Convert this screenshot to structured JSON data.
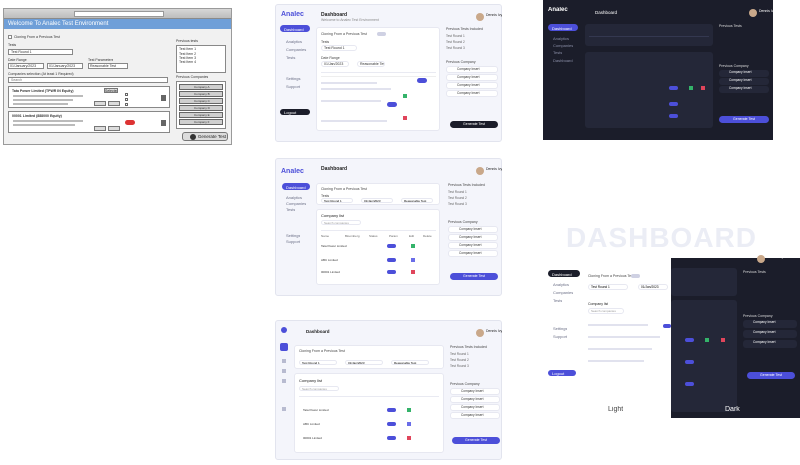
{
  "wireframe": {
    "banner": "Welcome To Analec Test Environment",
    "checkbox_label": "Cloning From a Previous Test",
    "tests_label": "Tests",
    "tests_value": "Test Round 1",
    "date_range_label": "Date Range",
    "date_from": "01/January/2023",
    "date_to": "01/January/2023",
    "test_parameters_label": "Test Parameters",
    "test_parameters_value": "Reasonable Test",
    "companies_label": "Companies selection (At least 1 Required)",
    "search_placeholder": "Search",
    "company1_name": "Tata Power Limited (TPWR IN Equity)",
    "company1_tag": "Selected",
    "company2_name": "00001 Limited (888000 Equity)",
    "previous_tests_label": "Previous tests",
    "previous_tests": [
      "Test Item 1",
      "Test Item 2",
      "Test Item 3",
      "Test Item 4"
    ],
    "previous_companies_label": "Previous Companies",
    "previous_companies": [
      "Company A",
      "Company B",
      "Company C",
      "Company D",
      "Company E",
      "Company F"
    ],
    "run_button": "Generate Test"
  },
  "mock_light": {
    "logo": "Analec",
    "title": "Dashboard",
    "subtitle": "Welcome to Analec Test Environment",
    "user": "Dennis Ivy",
    "user_role": "Admin",
    "nav": [
      "Dashboard",
      "Analytics",
      "Companies",
      "Tests",
      "Settings",
      "Support"
    ],
    "clone_label": "Cloning From a Previous Test",
    "tests_label": "Tests",
    "tests_value": "Test Round 1",
    "date_label": "Date Range",
    "date_value": "01/Jan/2023",
    "params_label": "Test Parameters",
    "params_value": "Reasonable Test",
    "companies_label": "Company list",
    "search_placeholder": "Search companies",
    "col_headers": [
      "Name",
      "Bloomberg",
      "Status",
      "Param",
      "Edit",
      "Delete"
    ],
    "rows": [
      "Tata Power Limited",
      "ABC Limited",
      "00001 Limited"
    ],
    "previous_tests_label": "Previous Tests Included",
    "previous_tests": [
      "Test Round 1",
      "Test Round 2",
      "Test Round 3"
    ],
    "previous_companies_label": "Previous Company",
    "previous_companies": [
      "Company Insert",
      "Company Insert",
      "Company Insert",
      "Company Insert"
    ],
    "run_button": "Generate Test",
    "logout": "Logout"
  },
  "mock_dark": {
    "logo": "Analec",
    "title": "Dashboard",
    "user": "Dennis Ivy",
    "nav": [
      "Dashboard",
      "Analytics",
      "Companies",
      "Tests",
      "Dashboard"
    ],
    "previous_tests_label": "Previous Tests",
    "previous_companies_label": "Previous Company",
    "previous_companies": [
      "Company Insert",
      "Company Insert",
      "Company Insert"
    ],
    "run_button": "Generate Test"
  },
  "watermark": "DASHBOARD",
  "label_light": "Light",
  "label_dark": "Dark",
  "colors": {
    "accent": "#4c4fd9",
    "dark_bg": "#1b1d2a",
    "light_bg": "#f4f5fb",
    "green": "#34b36a",
    "red": "#e0455b",
    "wire_banner": "#6f9fd8"
  }
}
